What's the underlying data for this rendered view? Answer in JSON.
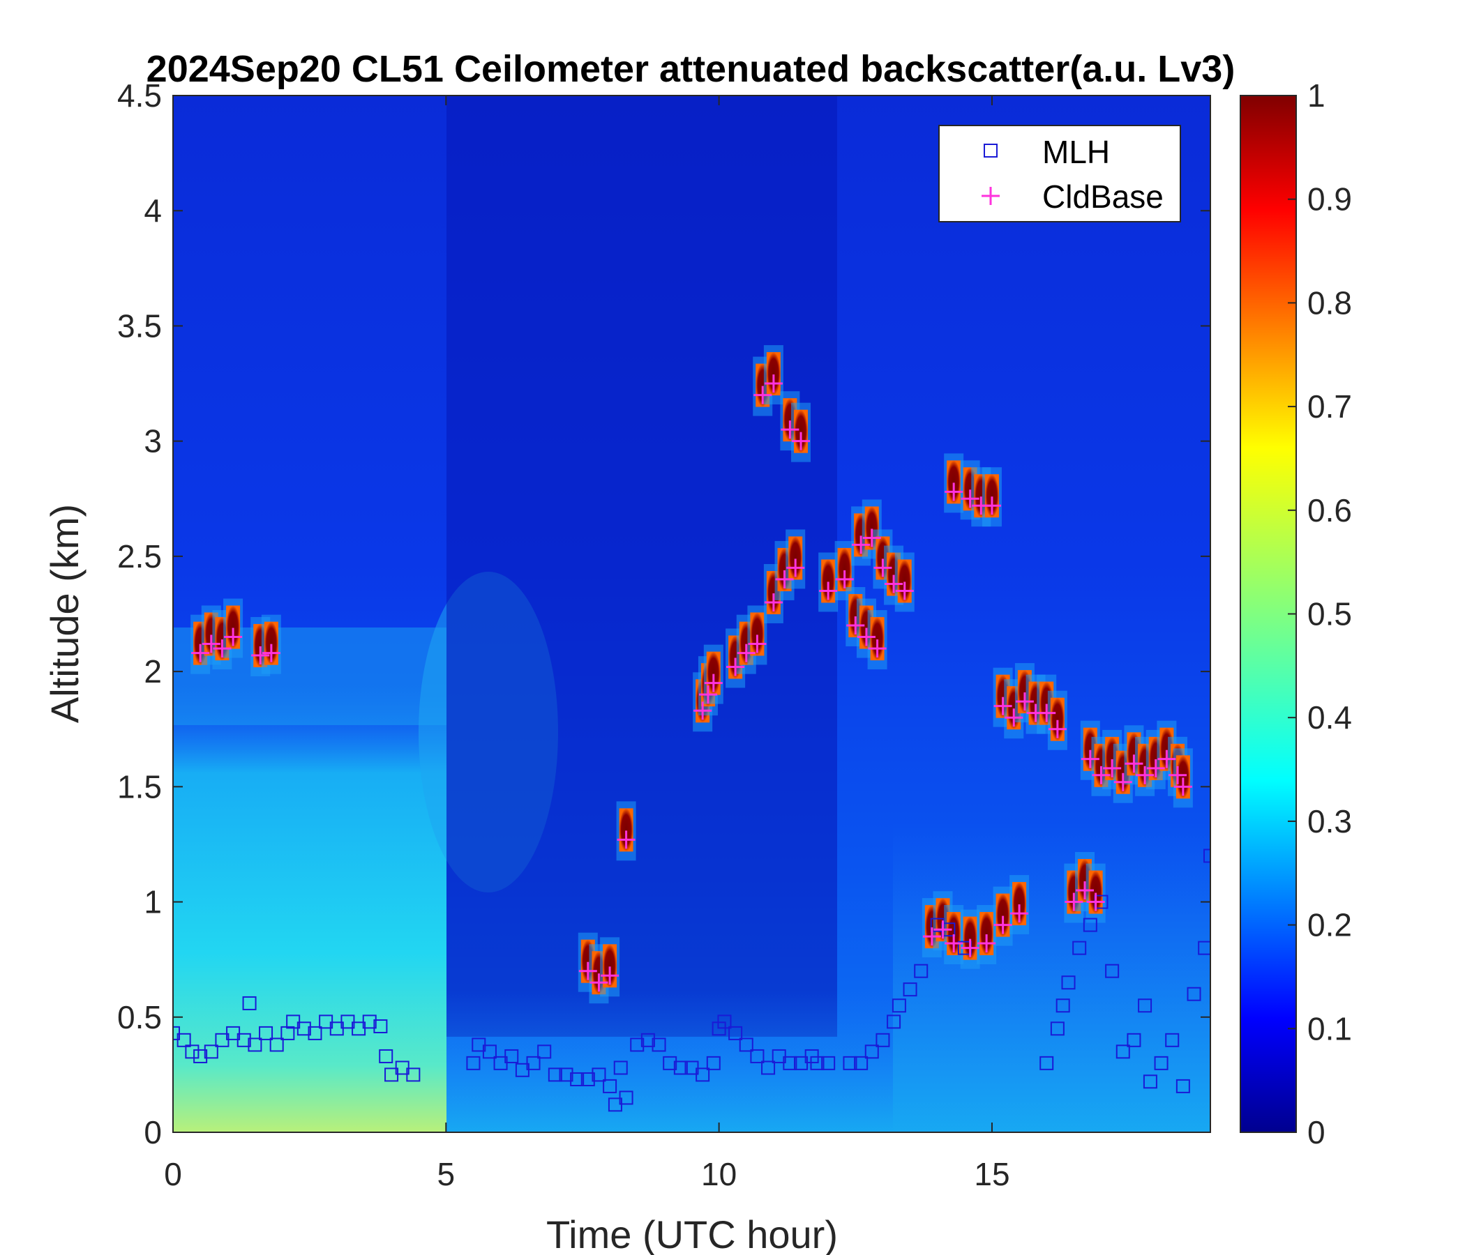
{
  "chart_data": {
    "type": "heatmap",
    "title": "2024Sep20 CL51 Ceilometer attenuated backscatter(a.u. Lv3)",
    "xlabel": "Time (UTC hour)",
    "ylabel": "Altitude (km)",
    "xlim": [
      0,
      19
    ],
    "ylim": [
      0,
      4.5
    ],
    "x_ticks": [
      "0",
      "5",
      "10",
      "15"
    ],
    "y_ticks": [
      "0",
      "0.5",
      "1",
      "1.5",
      "2",
      "2.5",
      "3",
      "3.5",
      "4",
      "4.5"
    ],
    "colorbar": {
      "colormap": "jet",
      "range": [
        0,
        1
      ],
      "ticks": [
        "0",
        "0.1",
        "0.2",
        "0.3",
        "0.4",
        "0.5",
        "0.6",
        "0.7",
        "0.8",
        "0.9",
        "1"
      ]
    },
    "legend": {
      "placement": "top-right",
      "entries": [
        {
          "label": "MLH",
          "marker": "square",
          "color": "#1a1ad6"
        },
        {
          "label": "CldBase",
          "marker": "plus",
          "color": "#ff33dd"
        }
      ]
    },
    "series": [
      {
        "name": "MLH",
        "marker": "square",
        "color": "#1a1ad6",
        "points": [
          [
            0.0,
            0.43
          ],
          [
            0.2,
            0.4
          ],
          [
            0.35,
            0.35
          ],
          [
            0.5,
            0.33
          ],
          [
            0.7,
            0.35
          ],
          [
            0.9,
            0.4
          ],
          [
            1.1,
            0.43
          ],
          [
            1.3,
            0.4
          ],
          [
            1.4,
            0.56
          ],
          [
            1.5,
            0.38
          ],
          [
            1.7,
            0.43
          ],
          [
            1.9,
            0.38
          ],
          [
            2.1,
            0.43
          ],
          [
            2.2,
            0.48
          ],
          [
            2.4,
            0.45
          ],
          [
            2.6,
            0.43
          ],
          [
            2.8,
            0.48
          ],
          [
            3.0,
            0.45
          ],
          [
            3.2,
            0.48
          ],
          [
            3.4,
            0.45
          ],
          [
            3.6,
            0.48
          ],
          [
            3.8,
            0.46
          ],
          [
            3.9,
            0.33
          ],
          [
            4.0,
            0.25
          ],
          [
            4.2,
            0.28
          ],
          [
            4.4,
            0.25
          ],
          [
            5.5,
            0.3
          ],
          [
            5.6,
            0.38
          ],
          [
            5.8,
            0.35
          ],
          [
            6.0,
            0.3
          ],
          [
            6.2,
            0.33
          ],
          [
            6.4,
            0.27
          ],
          [
            6.6,
            0.3
          ],
          [
            6.8,
            0.35
          ],
          [
            7.0,
            0.25
          ],
          [
            7.2,
            0.25
          ],
          [
            7.4,
            0.23
          ],
          [
            7.6,
            0.23
          ],
          [
            7.8,
            0.25
          ],
          [
            8.0,
            0.2
          ],
          [
            8.1,
            0.12
          ],
          [
            8.2,
            0.28
          ],
          [
            8.3,
            0.15
          ],
          [
            8.5,
            0.38
          ],
          [
            8.7,
            0.4
          ],
          [
            8.9,
            0.38
          ],
          [
            9.1,
            0.3
          ],
          [
            9.3,
            0.28
          ],
          [
            9.5,
            0.28
          ],
          [
            9.7,
            0.25
          ],
          [
            9.9,
            0.3
          ],
          [
            10.0,
            0.45
          ],
          [
            10.1,
            0.48
          ],
          [
            10.3,
            0.43
          ],
          [
            10.5,
            0.38
          ],
          [
            10.7,
            0.33
          ],
          [
            10.9,
            0.28
          ],
          [
            11.1,
            0.33
          ],
          [
            11.3,
            0.3
          ],
          [
            11.5,
            0.3
          ],
          [
            11.7,
            0.33
          ],
          [
            11.8,
            0.3
          ],
          [
            12.0,
            0.3
          ],
          [
            12.4,
            0.3
          ],
          [
            12.6,
            0.3
          ],
          [
            12.8,
            0.35
          ],
          [
            13.0,
            0.4
          ],
          [
            13.2,
            0.48
          ],
          [
            13.3,
            0.55
          ],
          [
            13.5,
            0.62
          ],
          [
            13.7,
            0.7
          ],
          [
            14.0,
            0.9
          ],
          [
            14.2,
            0.88
          ],
          [
            14.5,
            0.8
          ],
          [
            16.0,
            0.3
          ],
          [
            16.2,
            0.45
          ],
          [
            16.3,
            0.55
          ],
          [
            16.4,
            0.65
          ],
          [
            16.6,
            0.8
          ],
          [
            16.8,
            0.9
          ],
          [
            17.0,
            1.0
          ],
          [
            17.2,
            0.7
          ],
          [
            17.4,
            0.35
          ],
          [
            17.6,
            0.4
          ],
          [
            17.8,
            0.55
          ],
          [
            17.9,
            0.22
          ],
          [
            18.1,
            0.3
          ],
          [
            18.3,
            0.4
          ],
          [
            18.5,
            0.2
          ],
          [
            18.7,
            0.6
          ],
          [
            18.9,
            0.8
          ],
          [
            19.0,
            1.2
          ]
        ]
      },
      {
        "name": "CldBase",
        "marker": "plus",
        "color": "#ff33dd",
        "points": [
          [
            0.5,
            2.08
          ],
          [
            0.7,
            2.12
          ],
          [
            0.9,
            2.1
          ],
          [
            1.1,
            2.15
          ],
          [
            1.6,
            2.07
          ],
          [
            1.8,
            2.08
          ],
          [
            7.6,
            0.7
          ],
          [
            7.8,
            0.65
          ],
          [
            8.0,
            0.68
          ],
          [
            8.3,
            1.27
          ],
          [
            9.7,
            1.83
          ],
          [
            9.8,
            1.9
          ],
          [
            9.9,
            1.95
          ],
          [
            10.3,
            2.02
          ],
          [
            10.5,
            2.08
          ],
          [
            10.7,
            2.12
          ],
          [
            10.8,
            3.2
          ],
          [
            11.0,
            3.25
          ],
          [
            11.3,
            3.05
          ],
          [
            11.5,
            3.0
          ],
          [
            11.0,
            2.3
          ],
          [
            11.2,
            2.4
          ],
          [
            11.4,
            2.45
          ],
          [
            12.0,
            2.35
          ],
          [
            12.3,
            2.4
          ],
          [
            12.6,
            2.55
          ],
          [
            12.8,
            2.58
          ],
          [
            13.0,
            2.45
          ],
          [
            13.2,
            2.38
          ],
          [
            13.4,
            2.35
          ],
          [
            12.5,
            2.2
          ],
          [
            12.7,
            2.15
          ],
          [
            12.9,
            2.1
          ],
          [
            14.3,
            2.78
          ],
          [
            14.6,
            2.75
          ],
          [
            14.8,
            2.72
          ],
          [
            15.0,
            2.72
          ],
          [
            13.9,
            0.85
          ],
          [
            14.1,
            0.88
          ],
          [
            14.3,
            0.82
          ],
          [
            14.6,
            0.8
          ],
          [
            14.9,
            0.82
          ],
          [
            15.2,
            0.9
          ],
          [
            15.5,
            0.95
          ],
          [
            15.2,
            1.85
          ],
          [
            15.4,
            1.8
          ],
          [
            15.6,
            1.87
          ],
          [
            15.8,
            1.82
          ],
          [
            16.0,
            1.82
          ],
          [
            16.2,
            1.75
          ],
          [
            16.5,
            1.0
          ],
          [
            16.7,
            1.05
          ],
          [
            16.9,
            1.0
          ],
          [
            16.8,
            1.62
          ],
          [
            17.0,
            1.55
          ],
          [
            17.2,
            1.58
          ],
          [
            17.4,
            1.52
          ],
          [
            17.6,
            1.6
          ],
          [
            17.8,
            1.55
          ],
          [
            18.0,
            1.58
          ],
          [
            18.2,
            1.62
          ],
          [
            18.4,
            1.55
          ],
          [
            18.5,
            1.5
          ]
        ]
      }
    ]
  }
}
